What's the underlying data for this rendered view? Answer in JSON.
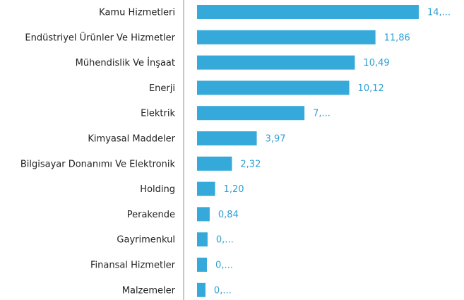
{
  "chart_data": {
    "type": "bar",
    "orientation": "horizontal",
    "color": "#34a9da",
    "categories": [
      "Kamu Hizmetleri",
      "Endüstriyel Ürünler Ve Hizmetler",
      "Mühendislik Ve İnşaat",
      "Enerji",
      "Elektrik",
      "Kimyasal Maddeler",
      "Bilgisayar Donanımı Ve Elektronik",
      "Holding",
      "Perakende",
      "Gayrimenkul",
      "Finansal Hizmetler",
      "Malzemeler"
    ],
    "values": [
      14.74,
      11.86,
      10.49,
      10.12,
      7.14,
      3.97,
      2.32,
      1.2,
      0.84,
      0.7,
      0.66,
      0.56
    ],
    "value_labels": [
      "14,...",
      "11,86",
      "10,49",
      "10,12",
      "7,...",
      "3,97",
      "2,32",
      "1,20",
      "0,84",
      "0,...",
      "0,...",
      "0,..."
    ],
    "xlim": [
      0,
      15
    ]
  }
}
